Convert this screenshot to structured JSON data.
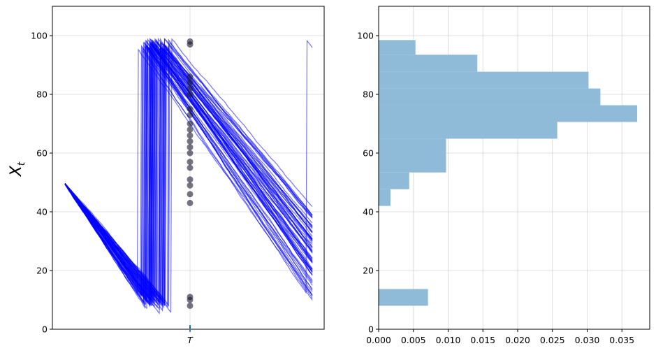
{
  "chart_data": [
    {
      "type": "line",
      "title": "",
      "xlabel": "",
      "ylabel": "X_t",
      "ylabel_main": "X",
      "ylabel_sub": "t",
      "ylim": [
        0,
        110
      ],
      "yticks": [
        0,
        20,
        40,
        60,
        80,
        100
      ],
      "xtick_label": "T",
      "grid": true,
      "line_color": "#0000ff",
      "marker_color": "#1a1a2e",
      "marker_values_at_T": [
        98,
        97,
        86,
        84,
        82,
        80,
        75,
        73,
        70,
        68,
        66,
        64,
        62,
        60,
        57,
        55,
        51,
        49,
        46,
        43,
        11,
        10,
        8
      ]
    },
    {
      "type": "bar",
      "orientation": "horizontal",
      "title": "",
      "xlabel": "",
      "ylabel": "",
      "xlim": [
        0,
        0.039
      ],
      "ylim": [
        0,
        110
      ],
      "xticks": [
        0.0,
        0.005,
        0.01,
        0.015,
        0.02,
        0.025,
        0.03,
        0.035
      ],
      "xtick_labels": [
        "0.000",
        "0.005",
        "0.010",
        "0.015",
        "0.020",
        "0.025",
        "0.030",
        "0.035"
      ],
      "yticks": [
        0,
        20,
        40,
        60,
        80,
        100
      ],
      "grid": true,
      "bar_color": "#8fbbd9",
      "bins": [
        {
          "y0": 8.0,
          "y1": 13.7,
          "value": 0.0071
        },
        {
          "y0": 42.0,
          "y1": 47.7,
          "value": 0.0017
        },
        {
          "y0": 47.7,
          "y1": 53.4,
          "value": 0.0044
        },
        {
          "y0": 53.4,
          "y1": 64.9,
          "value": 0.0097
        },
        {
          "y0": 64.9,
          "y1": 70.6,
          "value": 0.0257
        },
        {
          "y0": 70.6,
          "y1": 76.3,
          "value": 0.0372
        },
        {
          "y0": 76.3,
          "y1": 82.0,
          "value": 0.0319
        },
        {
          "y0": 82.0,
          "y1": 87.7,
          "value": 0.0302
        },
        {
          "y0": 87.7,
          "y1": 93.5,
          "value": 0.0142
        },
        {
          "y0": 93.5,
          "y1": 98.5,
          "value": 0.0053
        }
      ]
    }
  ]
}
